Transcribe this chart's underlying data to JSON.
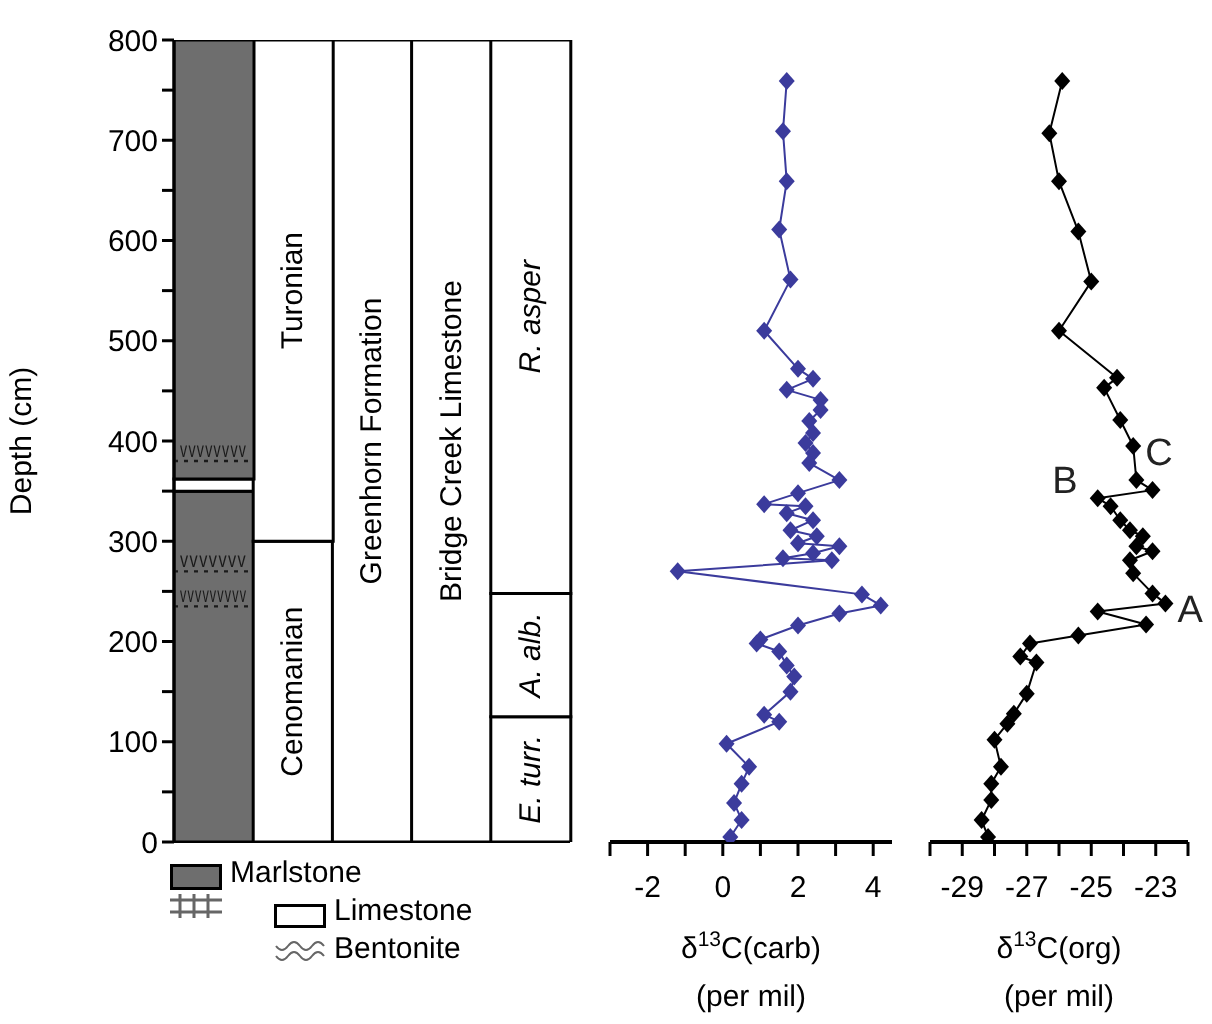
{
  "chart_data": [
    {
      "type": "bar",
      "stacked": true,
      "ylabel": "Depth (cm)",
      "categories": [
        null,
        null,
        null,
        null,
        null
      ],
      "ylim": [
        0,
        800
      ],
      "yticks": [
        0,
        {
          "value": 50,
          "label": null
        },
        100,
        {
          "value": 150,
          "label": null
        },
        200,
        {
          "value": 250,
          "label": null
        },
        300,
        {
          "value": 350,
          "label": null
        },
        400,
        {
          "value": 450,
          "label": null
        },
        500,
        {
          "value": 550,
          "label": null
        },
        600,
        {
          "value": 650,
          "label": null
        },
        700,
        {
          "value": 750,
          "label": null
        },
        800
      ],
      "tick_labels": "y",
      "legend": false,
      "series": [
        {
          "values": [
            350,
            300,
            800,
            800,
            125
          ],
          "colors": [
            "#6e6e6e",
            "#ffffff",
            "#ffffff",
            "#ffffff",
            "#ffffff"
          ],
          "value_labels": [
            null,
            "Cenomanian",
            "Greenhorn Formation",
            "Bridge Creek Limestone",
            "E. turr."
          ]
        },
        {
          "values": [
            12,
            500,
            null,
            null,
            123
          ],
          "colors": [
            "#ffffff",
            "#ffffff",
            "#ffffff",
            "#ffffff",
            "#ffffff"
          ],
          "value_labels": [
            null,
            "Turonian",
            null,
            null,
            "A. alb."
          ]
        },
        {
          "values": [
            438,
            null,
            null,
            null,
            552
          ],
          "colors": [
            "#6e6e6e",
            "#ffffff",
            "#ffffff",
            "#ffffff",
            "#ffffff"
          ],
          "value_labels": [
            null,
            null,
            null,
            null,
            "R. asper"
          ]
        }
      ],
      "ref_lines": [
        {
          "axis": "y",
          "value": 380,
          "label": "vvvvvvvv",
          "line_style": "dotted",
          "color": "#1a1a1a"
        },
        {
          "axis": "y",
          "value": 270,
          "label": "vvvvvvv",
          "line_style": "dotted",
          "color": "#1a1a1a"
        },
        {
          "axis": "y",
          "value": 235,
          "label": "vvvvvvvvv",
          "line_style": "dotted",
          "color": "#1a1a1a"
        }
      ],
      "annotations": [
        "Marlstone",
        "Limestone",
        "Bentonite"
      ]
    },
    {
      "type": "line",
      "xlabel": "δ$^{13}$C(carb) (per mil)",
      "xlim": [
        -3,
        4.5
      ],
      "xticks": [
        {
          "value": -3,
          "label": null
        },
        -2,
        {
          "value": -1,
          "label": null
        },
        0,
        {
          "value": 1,
          "label": null
        },
        2,
        {
          "value": 3,
          "label": null
        },
        4
      ],
      "ylim": [
        0,
        800
      ],
      "tick_labels": "x",
      "marker": "diamond",
      "line_style": "solid",
      "x": [
        1.7,
        1.6,
        1.7,
        1.5,
        1.8,
        1.1,
        2.0,
        2.4,
        1.7,
        2.6,
        2.6,
        2.3,
        2.4,
        2.2,
        2.4,
        2.3,
        3.1,
        2.0,
        1.1,
        2.2,
        1.7,
        2.4,
        1.8,
        2.5,
        2.0,
        3.1,
        2.4,
        1.6,
        2.9,
        -1.2,
        3.7,
        4.2,
        3.1,
        2.0,
        1.0,
        0.9,
        1.5,
        1.7,
        1.9,
        1.8,
        1.1,
        1.5,
        0.1,
        0.7,
        0.5,
        0.3,
        0.5,
        0.2
      ],
      "series": [
        {
          "color": "#3b3b9c",
          "values": [
            759,
            709,
            659,
            611,
            561,
            510,
            472,
            462,
            451,
            441,
            431,
            420,
            408,
            398,
            388,
            378,
            361,
            348,
            337,
            335,
            328,
            321,
            311,
            305,
            298,
            295,
            288,
            283,
            281,
            270,
            247,
            236,
            228,
            216,
            202,
            198,
            190,
            176,
            165,
            150,
            127,
            120,
            98,
            75,
            58,
            39,
            22,
            5
          ]
        }
      ]
    },
    {
      "type": "line",
      "xlabel": "δ$^{13}$C(org) (per mil)",
      "xlim": [
        -30,
        -22
      ],
      "xticks": [
        {
          "value": -30,
          "label": null
        },
        -29,
        {
          "value": -28,
          "label": null
        },
        -27,
        {
          "value": -26,
          "label": null
        },
        -25,
        {
          "value": -24,
          "label": null
        },
        -23,
        {
          "value": -22,
          "label": null
        }
      ],
      "ylim": [
        0,
        800
      ],
      "tick_labels": "x",
      "marker": "diamond",
      "line_style": "solid",
      "x": [
        -25.9,
        -26.3,
        -26.0,
        -25.4,
        -25.0,
        -26.0,
        -24.2,
        -24.6,
        -24.1,
        -23.7,
        -23.6,
        -23.1,
        -24.8,
        -24.4,
        -24.1,
        -23.8,
        -23.4,
        -23.6,
        -23.1,
        -23.8,
        -23.7,
        -23.1,
        -22.7,
        -24.8,
        -23.3,
        -25.4,
        -26.9,
        -27.2,
        -26.7,
        -27.0,
        -27.4,
        -27.6,
        -28.0,
        -27.8,
        -28.1,
        -28.1,
        -28.4,
        -28.2
      ],
      "series": [
        {
          "color": "#000000",
          "values": [
            759,
            707,
            659,
            609,
            559,
            510,
            463,
            453,
            421,
            395,
            361,
            351,
            343,
            335,
            321,
            311,
            305,
            295,
            290,
            281,
            268,
            248,
            238,
            230,
            217,
            206,
            198,
            185,
            179,
            148,
            128,
            118,
            102,
            75,
            58,
            42,
            22,
            5
          ]
        }
      ],
      "annotations": [
        {
          "text": "A",
          "x": -22.7,
          "y": 238
        },
        {
          "text": "B",
          "x": -24.8,
          "y": 343
        },
        {
          "text": "C",
          "x": -23.7,
          "y": 395
        }
      ]
    }
  ]
}
